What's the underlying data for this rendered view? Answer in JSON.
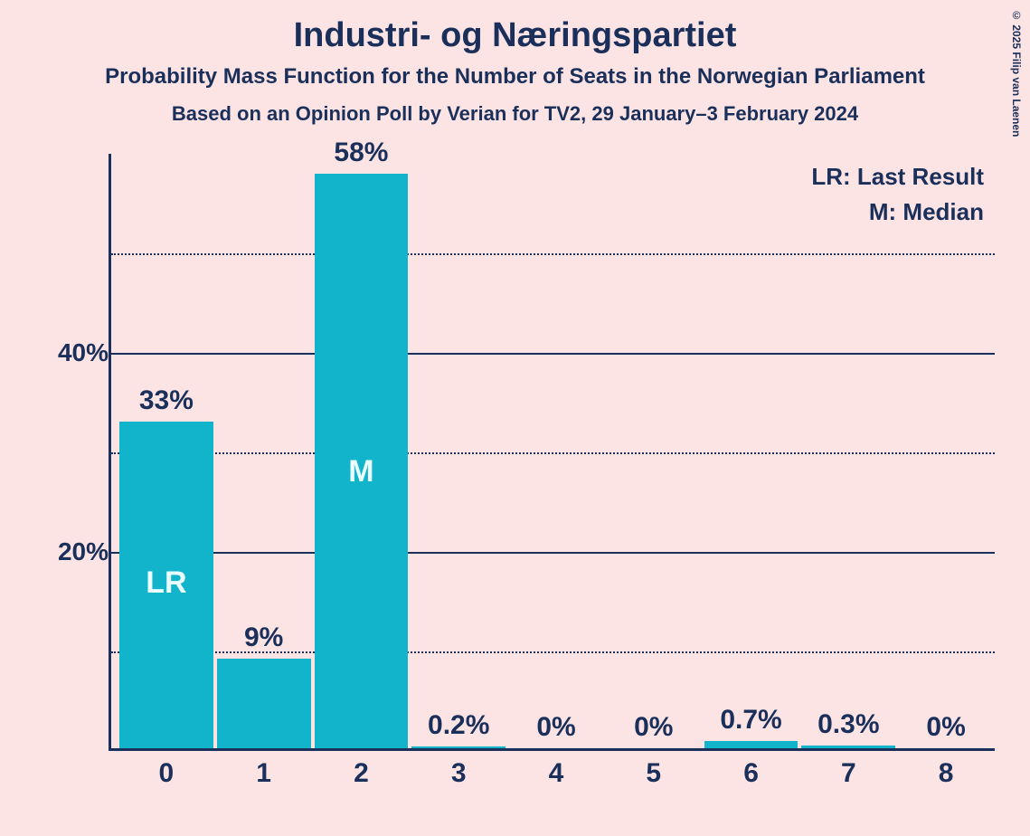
{
  "copyright": "© 2025 Filip van Laenen",
  "titles": {
    "main": "Industri- og Næringspartiet",
    "sub1": "Probability Mass Function for the Number of Seats in the Norwegian Parliament",
    "sub2": "Based on an Opinion Poll by Verian for TV2, 29 January–3 February 2024"
  },
  "legend": {
    "lr": "LR: Last Result",
    "m": "M: Median"
  },
  "chart": {
    "type": "bar",
    "y_max_visible": 60,
    "y_major_ticks": [
      20,
      40
    ],
    "y_minor_ticks": [
      10,
      30,
      50
    ],
    "bar_color": "#12b4cc",
    "background_color": "#fce4e4",
    "axis_color": "#1a2f5a",
    "text_color": "#1a2f5a",
    "inside_label_color": "#eafdff",
    "title_fontsize": 38,
    "subtitle_fontsize": 24,
    "label_fontsize": 30,
    "legend_fontsize": 26,
    "categories": [
      "0",
      "1",
      "2",
      "3",
      "4",
      "5",
      "6",
      "7",
      "8"
    ],
    "values": [
      33,
      9,
      58,
      0.2,
      0,
      0,
      0.7,
      0.3,
      0
    ],
    "value_labels": [
      "33%",
      "9%",
      "58%",
      "0.2%",
      "0%",
      "0%",
      "0.7%",
      "0.3%",
      "0%"
    ],
    "inside_labels": [
      "LR",
      "",
      "M",
      "",
      "",
      "",
      "",
      "",
      ""
    ],
    "y_tick_labels": {
      "20": "20%",
      "40": "40%"
    }
  }
}
